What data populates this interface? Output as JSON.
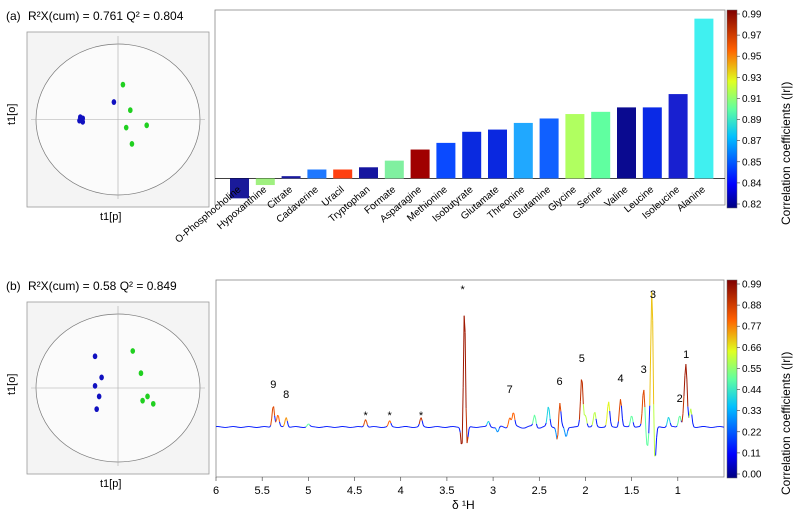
{
  "panel_a": {
    "label": "(a)",
    "stats": "R²X(cum) = 0.761   Q² = 0.804",
    "score_plot": {
      "ylabel": "t1[o]",
      "xlabel": "t1[p]",
      "blue_points": [
        [
          -4.6,
          0.2
        ],
        [
          -4.3,
          0.1
        ],
        [
          -4.7,
          -0.1
        ],
        [
          -4.3,
          -0.2
        ],
        [
          -0.5,
          1.5
        ]
      ],
      "green_points": [
        [
          0.6,
          3.0
        ],
        [
          1.5,
          0.8
        ],
        [
          3.5,
          -0.5
        ],
        [
          1.0,
          -0.7
        ],
        [
          1.7,
          -2.1
        ]
      ],
      "xlim": [
        -10,
        10
      ],
      "ylim": [
        -6.5,
        6.5
      ]
    },
    "chart_data": {
      "type": "bar",
      "categories": [
        "O-Phosphocholine",
        "Hypoxanthine",
        "Citrate",
        "Cadaverine",
        "Uracil",
        "Tryptophan",
        "Formate",
        "Asparagine",
        "Methionine",
        "Isobutyrate",
        "Glutamate",
        "Threonine",
        "Glutamine",
        "Glycine",
        "Serine",
        "Valine",
        "Leucine",
        "Isoleucine",
        "Alanine"
      ],
      "values": [
        -0.09,
        -0.03,
        0.01,
        0.04,
        0.04,
        0.05,
        0.08,
        0.13,
        0.16,
        0.21,
        0.22,
        0.25,
        0.27,
        0.29,
        0.3,
        0.32,
        0.32,
        0.38,
        0.72
      ],
      "colors": [
        "#1a1a9a",
        "#a0f080",
        "#1a1aa0",
        "#1e78ff",
        "#ff4010",
        "#1515a0",
        "#80f0a0",
        "#a00000",
        "#0a4aff",
        "#0a2ae0",
        "#0a28e0",
        "#20a8ff",
        "#1060ff",
        "#b0ff60",
        "#60ffa0",
        "#0a0a90",
        "#0a2ae6",
        "#1820d0",
        "#40f0f0"
      ],
      "ylim": [
        -0.12,
        0.75
      ]
    },
    "colorbar": {
      "label": "Correlation coefficients (|r|)",
      "ticks": [
        "0.99",
        "0.97",
        "0.95",
        "0.93",
        "0.91",
        "0.89",
        "0.87",
        "0.85",
        "0.84",
        "0.82"
      ]
    }
  },
  "panel_b": {
    "label": "(b)",
    "stats": "R²X(cum) = 0.58   Q² = 0.849",
    "score_plot": {
      "ylabel": "t1[o]",
      "xlabel": "t1[p]",
      "blue_points": [
        [
          -28,
          30
        ],
        [
          -23,
          -8
        ],
        [
          -26,
          -20
        ],
        [
          -20,
          10
        ],
        [
          -28,
          2
        ]
      ],
      "green_points": [
        [
          18,
          35
        ],
        [
          30,
          -12
        ],
        [
          28,
          14
        ],
        [
          36,
          -8
        ],
        [
          43,
          -15
        ]
      ],
      "xlim": [
        -100,
        100
      ],
      "ylim": [
        -70,
        70
      ]
    },
    "spectrum": {
      "xlabel": "δ ¹H",
      "xlim": [
        6.0,
        0.5
      ],
      "xticks": [
        "6",
        "5.5",
        "5",
        "4.5",
        "4",
        "3.5",
        "3",
        "2.5",
        "2",
        "1.5",
        "1"
      ],
      "xtick_values": [
        6,
        5.5,
        5,
        4.5,
        4,
        3.5,
        3,
        2.5,
        2,
        1.5,
        1
      ],
      "peak_labels": [
        {
          "text": "9",
          "ppm": 5.38
        },
        {
          "text": "8",
          "ppm": 5.24
        },
        {
          "text": "*",
          "ppm": 4.38
        },
        {
          "text": "*",
          "ppm": 4.12
        },
        {
          "text": "*",
          "ppm": 3.78
        },
        {
          "text": "*",
          "ppm": 3.33
        },
        {
          "text": "7",
          "ppm": 2.82
        },
        {
          "text": "6",
          "ppm": 2.28
        },
        {
          "text": "5",
          "ppm": 2.04
        },
        {
          "text": "4",
          "ppm": 1.62
        },
        {
          "text": "3",
          "ppm": 1.37
        },
        {
          "text": "3",
          "ppm": 1.27
        },
        {
          "text": "2",
          "ppm": 0.98
        },
        {
          "text": "1",
          "ppm": 0.91
        }
      ]
    },
    "colorbar": {
      "label": "Correlation coefficients (|r|)",
      "ticks": [
        "0.99",
        "0.88",
        "0.77",
        "0.66",
        "0.55",
        "0.44",
        "0.33",
        "0.22",
        "0.11",
        "0.00"
      ]
    }
  }
}
